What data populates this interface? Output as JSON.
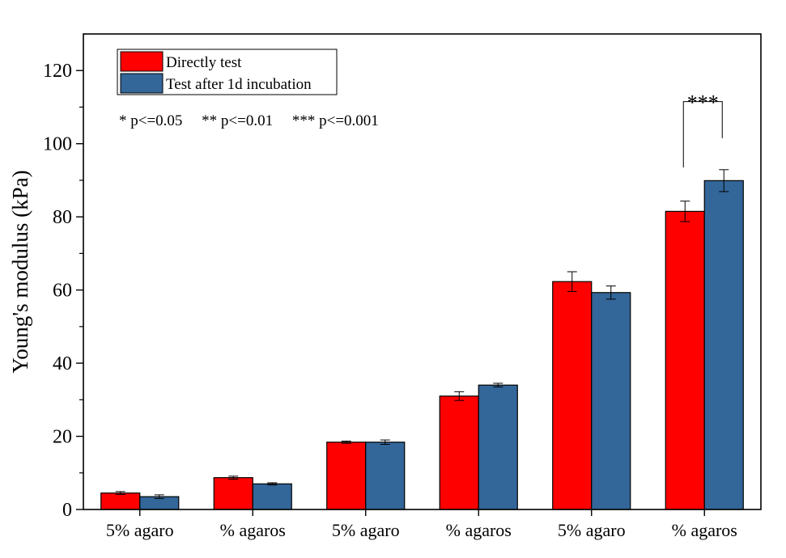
{
  "chart_data": {
    "type": "bar",
    "title": "",
    "xlabel": "",
    "ylabel": "Young's modulus (kPa)",
    "ylim": [
      0,
      130
    ],
    "yticks": [
      0,
      20,
      40,
      60,
      80,
      100,
      120
    ],
    "categories": [
      "5% agaro",
      "% agaros",
      "5% agaro",
      "% agaros",
      "5% agaro",
      "% agaros"
    ],
    "series": [
      {
        "name": "Directly test",
        "color": "#ff0000",
        "values": [
          4.5,
          8.7,
          18.4,
          31.0,
          62.3,
          81.5
        ],
        "errors": [
          0.4,
          0.4,
          0.3,
          1.2,
          2.7,
          2.8
        ]
      },
      {
        "name": "Test after 1d incubation",
        "color": "#336699",
        "values": [
          3.5,
          7.0,
          18.4,
          34.0,
          59.3,
          89.9
        ],
        "errors": [
          0.5,
          0.3,
          0.6,
          0.5,
          1.8,
          3.0
        ]
      }
    ],
    "significance_note": "* p<=0.05     ** p<=0.01     *** p<=0.001",
    "significance": [
      {
        "category_index": 5,
        "label": "***"
      }
    ],
    "legend_position": "top-left",
    "grid": false
  }
}
